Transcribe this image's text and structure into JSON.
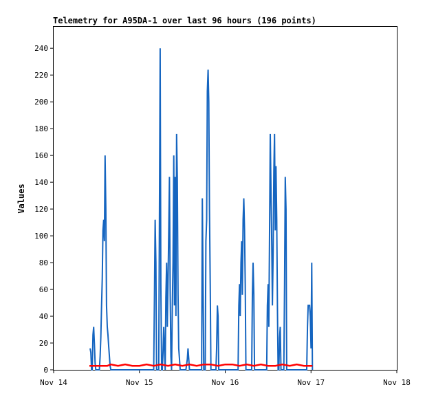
{
  "chart_data": {
    "type": "line",
    "title": "Telemetry for A95DA-1 over last 96 hours (196 points)",
    "xlabel": "",
    "ylabel": "Values",
    "x_ticks": [
      "Nov 14",
      "Nov 15",
      "Nov 16",
      "Nov 17",
      "Nov 18"
    ],
    "xlim_hours": [
      0,
      96
    ],
    "ylim": [
      0,
      256
    ],
    "y_ticks": [
      0,
      20,
      40,
      60,
      80,
      100,
      120,
      140,
      160,
      180,
      200,
      220,
      240
    ],
    "grid": false,
    "legend": "none",
    "colors": {
      "series1": "#1565c0",
      "series2": "#ff0000"
    },
    "series": [
      {
        "values_xy": [
          [
            10.2,
            16
          ],
          [
            10.4,
            13
          ],
          [
            10.6,
            0
          ],
          [
            10.8,
            0
          ],
          [
            11.0,
            26
          ],
          [
            11.2,
            32
          ],
          [
            11.4,
            19
          ],
          [
            11.6,
            5
          ],
          [
            11.8,
            0
          ],
          [
            12.0,
            0
          ],
          [
            12.2,
            0
          ],
          [
            12.4,
            0
          ],
          [
            12.6,
            0
          ],
          [
            12.8,
            0
          ],
          [
            13.0,
            10
          ],
          [
            13.2,
            24
          ],
          [
            13.4,
            48
          ],
          [
            13.6,
            68
          ],
          [
            13.8,
            104
          ],
          [
            14.0,
            112
          ],
          [
            14.2,
            96
          ],
          [
            14.4,
            160
          ],
          [
            14.6,
            120
          ],
          [
            14.8,
            48
          ],
          [
            15.0,
            32
          ],
          [
            15.2,
            26
          ],
          [
            15.4,
            18
          ],
          [
            15.6,
            10
          ],
          [
            15.8,
            3
          ],
          [
            16.0,
            0
          ],
          [
            18.0,
            0
          ],
          [
            19.0,
            0
          ],
          [
            20.0,
            0
          ],
          [
            21.0,
            0
          ],
          [
            22.0,
            0
          ],
          [
            23.0,
            0
          ],
          [
            24.0,
            0
          ],
          [
            25.0,
            0
          ],
          [
            26.0,
            0
          ],
          [
            27.0,
            0
          ],
          [
            28.0,
            0
          ],
          [
            28.2,
            56
          ],
          [
            28.4,
            112
          ],
          [
            28.6,
            80
          ],
          [
            28.8,
            0
          ],
          [
            29.0,
            0
          ],
          [
            29.4,
            0
          ],
          [
            29.6,
            120
          ],
          [
            29.8,
            240
          ],
          [
            30.0,
            64
          ],
          [
            30.2,
            0
          ],
          [
            30.4,
            0
          ],
          [
            30.6,
            14
          ],
          [
            30.8,
            32
          ],
          [
            31.0,
            16
          ],
          [
            31.2,
            0
          ],
          [
            31.4,
            54
          ],
          [
            31.6,
            80
          ],
          [
            31.8,
            32
          ],
          [
            32.0,
            64
          ],
          [
            32.2,
            104
          ],
          [
            32.4,
            144
          ],
          [
            32.6,
            56
          ],
          [
            32.8,
            10
          ],
          [
            33.0,
            0
          ],
          [
            33.2,
            48
          ],
          [
            33.4,
            80
          ],
          [
            33.6,
            160
          ],
          [
            33.8,
            48
          ],
          [
            34.0,
            144
          ],
          [
            34.2,
            40
          ],
          [
            34.4,
            176
          ],
          [
            34.6,
            144
          ],
          [
            34.8,
            56
          ],
          [
            35.0,
            16
          ],
          [
            35.2,
            8
          ],
          [
            35.4,
            0
          ],
          [
            36.0,
            0
          ],
          [
            37.0,
            0
          ],
          [
            37.4,
            8
          ],
          [
            37.6,
            16
          ],
          [
            37.8,
            8
          ],
          [
            38.0,
            0
          ],
          [
            39.0,
            0
          ],
          [
            40.0,
            0
          ],
          [
            41.0,
            0
          ],
          [
            41.4,
            0
          ],
          [
            41.6,
            128
          ],
          [
            41.8,
            64
          ],
          [
            42.0,
            0
          ],
          [
            42.4,
            0
          ],
          [
            42.6,
            96
          ],
          [
            42.8,
            112
          ],
          [
            43.0,
            208
          ],
          [
            43.2,
            224
          ],
          [
            43.4,
            200
          ],
          [
            43.6,
            120
          ],
          [
            43.8,
            64
          ],
          [
            44.0,
            0
          ],
          [
            44.4,
            0
          ],
          [
            45.0,
            0
          ],
          [
            45.4,
            0
          ],
          [
            45.6,
            16
          ],
          [
            45.8,
            48
          ],
          [
            46.0,
            40
          ],
          [
            46.2,
            0
          ],
          [
            47.0,
            0
          ],
          [
            48.0,
            0
          ],
          [
            49.0,
            0
          ],
          [
            50.0,
            0
          ],
          [
            51.0,
            0
          ],
          [
            51.6,
            0
          ],
          [
            51.8,
            48
          ],
          [
            52.0,
            64
          ],
          [
            52.2,
            40
          ],
          [
            52.4,
            80
          ],
          [
            52.6,
            96
          ],
          [
            52.8,
            56
          ],
          [
            53.0,
            112
          ],
          [
            53.2,
            128
          ],
          [
            53.4,
            104
          ],
          [
            53.6,
            64
          ],
          [
            53.8,
            0
          ],
          [
            54.0,
            0
          ],
          [
            55.0,
            0
          ],
          [
            55.4,
            0
          ],
          [
            55.6,
            56
          ],
          [
            55.8,
            80
          ],
          [
            56.0,
            56
          ],
          [
            56.2,
            0
          ],
          [
            57.0,
            0
          ],
          [
            58.0,
            0
          ],
          [
            59.0,
            0
          ],
          [
            59.6,
            0
          ],
          [
            59.8,
            48
          ],
          [
            60.0,
            64
          ],
          [
            60.2,
            32
          ],
          [
            60.4,
            104
          ],
          [
            60.6,
            176
          ],
          [
            60.8,
            136
          ],
          [
            61.0,
            96
          ],
          [
            61.2,
            48
          ],
          [
            61.4,
            88
          ],
          [
            61.6,
            148
          ],
          [
            61.8,
            176
          ],
          [
            62.0,
            104
          ],
          [
            62.2,
            152
          ],
          [
            62.4,
            112
          ],
          [
            62.6,
            48
          ],
          [
            62.8,
            0
          ],
          [
            63.0,
            0
          ],
          [
            63.2,
            24
          ],
          [
            63.4,
            32
          ],
          [
            63.6,
            0
          ],
          [
            64.0,
            0
          ],
          [
            64.4,
            0
          ],
          [
            64.6,
            64
          ],
          [
            64.8,
            144
          ],
          [
            65.0,
            120
          ],
          [
            65.2,
            0
          ],
          [
            66.0,
            0
          ],
          [
            67.0,
            0
          ],
          [
            68.0,
            0
          ],
          [
            69.0,
            0
          ],
          [
            70.0,
            0
          ],
          [
            70.8,
            0
          ],
          [
            71.0,
            32
          ],
          [
            71.2,
            48
          ],
          [
            71.4,
            48
          ],
          [
            71.6,
            48
          ],
          [
            71.8,
            40
          ],
          [
            72.0,
            16
          ],
          [
            72.2,
            80
          ],
          [
            72.4,
            0
          ]
        ]
      },
      {
        "values_xy": [
          [
            10.0,
            3
          ],
          [
            14.0,
            3
          ],
          [
            15.0,
            3
          ],
          [
            16.0,
            4
          ],
          [
            18.0,
            3
          ],
          [
            20.0,
            4
          ],
          [
            22.0,
            3
          ],
          [
            24.0,
            3
          ],
          [
            26.0,
            4
          ],
          [
            28.0,
            3
          ],
          [
            30.0,
            4
          ],
          [
            32.0,
            3
          ],
          [
            34.0,
            4
          ],
          [
            36.0,
            3
          ],
          [
            38.0,
            4
          ],
          [
            40.0,
            3
          ],
          [
            42.0,
            4
          ],
          [
            44.0,
            4
          ],
          [
            46.0,
            3
          ],
          [
            48.0,
            4
          ],
          [
            50.0,
            4
          ],
          [
            52.0,
            3
          ],
          [
            54.0,
            4
          ],
          [
            56.0,
            3
          ],
          [
            58.0,
            4
          ],
          [
            60.0,
            3
          ],
          [
            62.0,
            3
          ],
          [
            64.0,
            4
          ],
          [
            66.0,
            3
          ],
          [
            68.0,
            4
          ],
          [
            70.0,
            3
          ],
          [
            72.0,
            3
          ],
          [
            72.4,
            3
          ]
        ]
      }
    ]
  }
}
